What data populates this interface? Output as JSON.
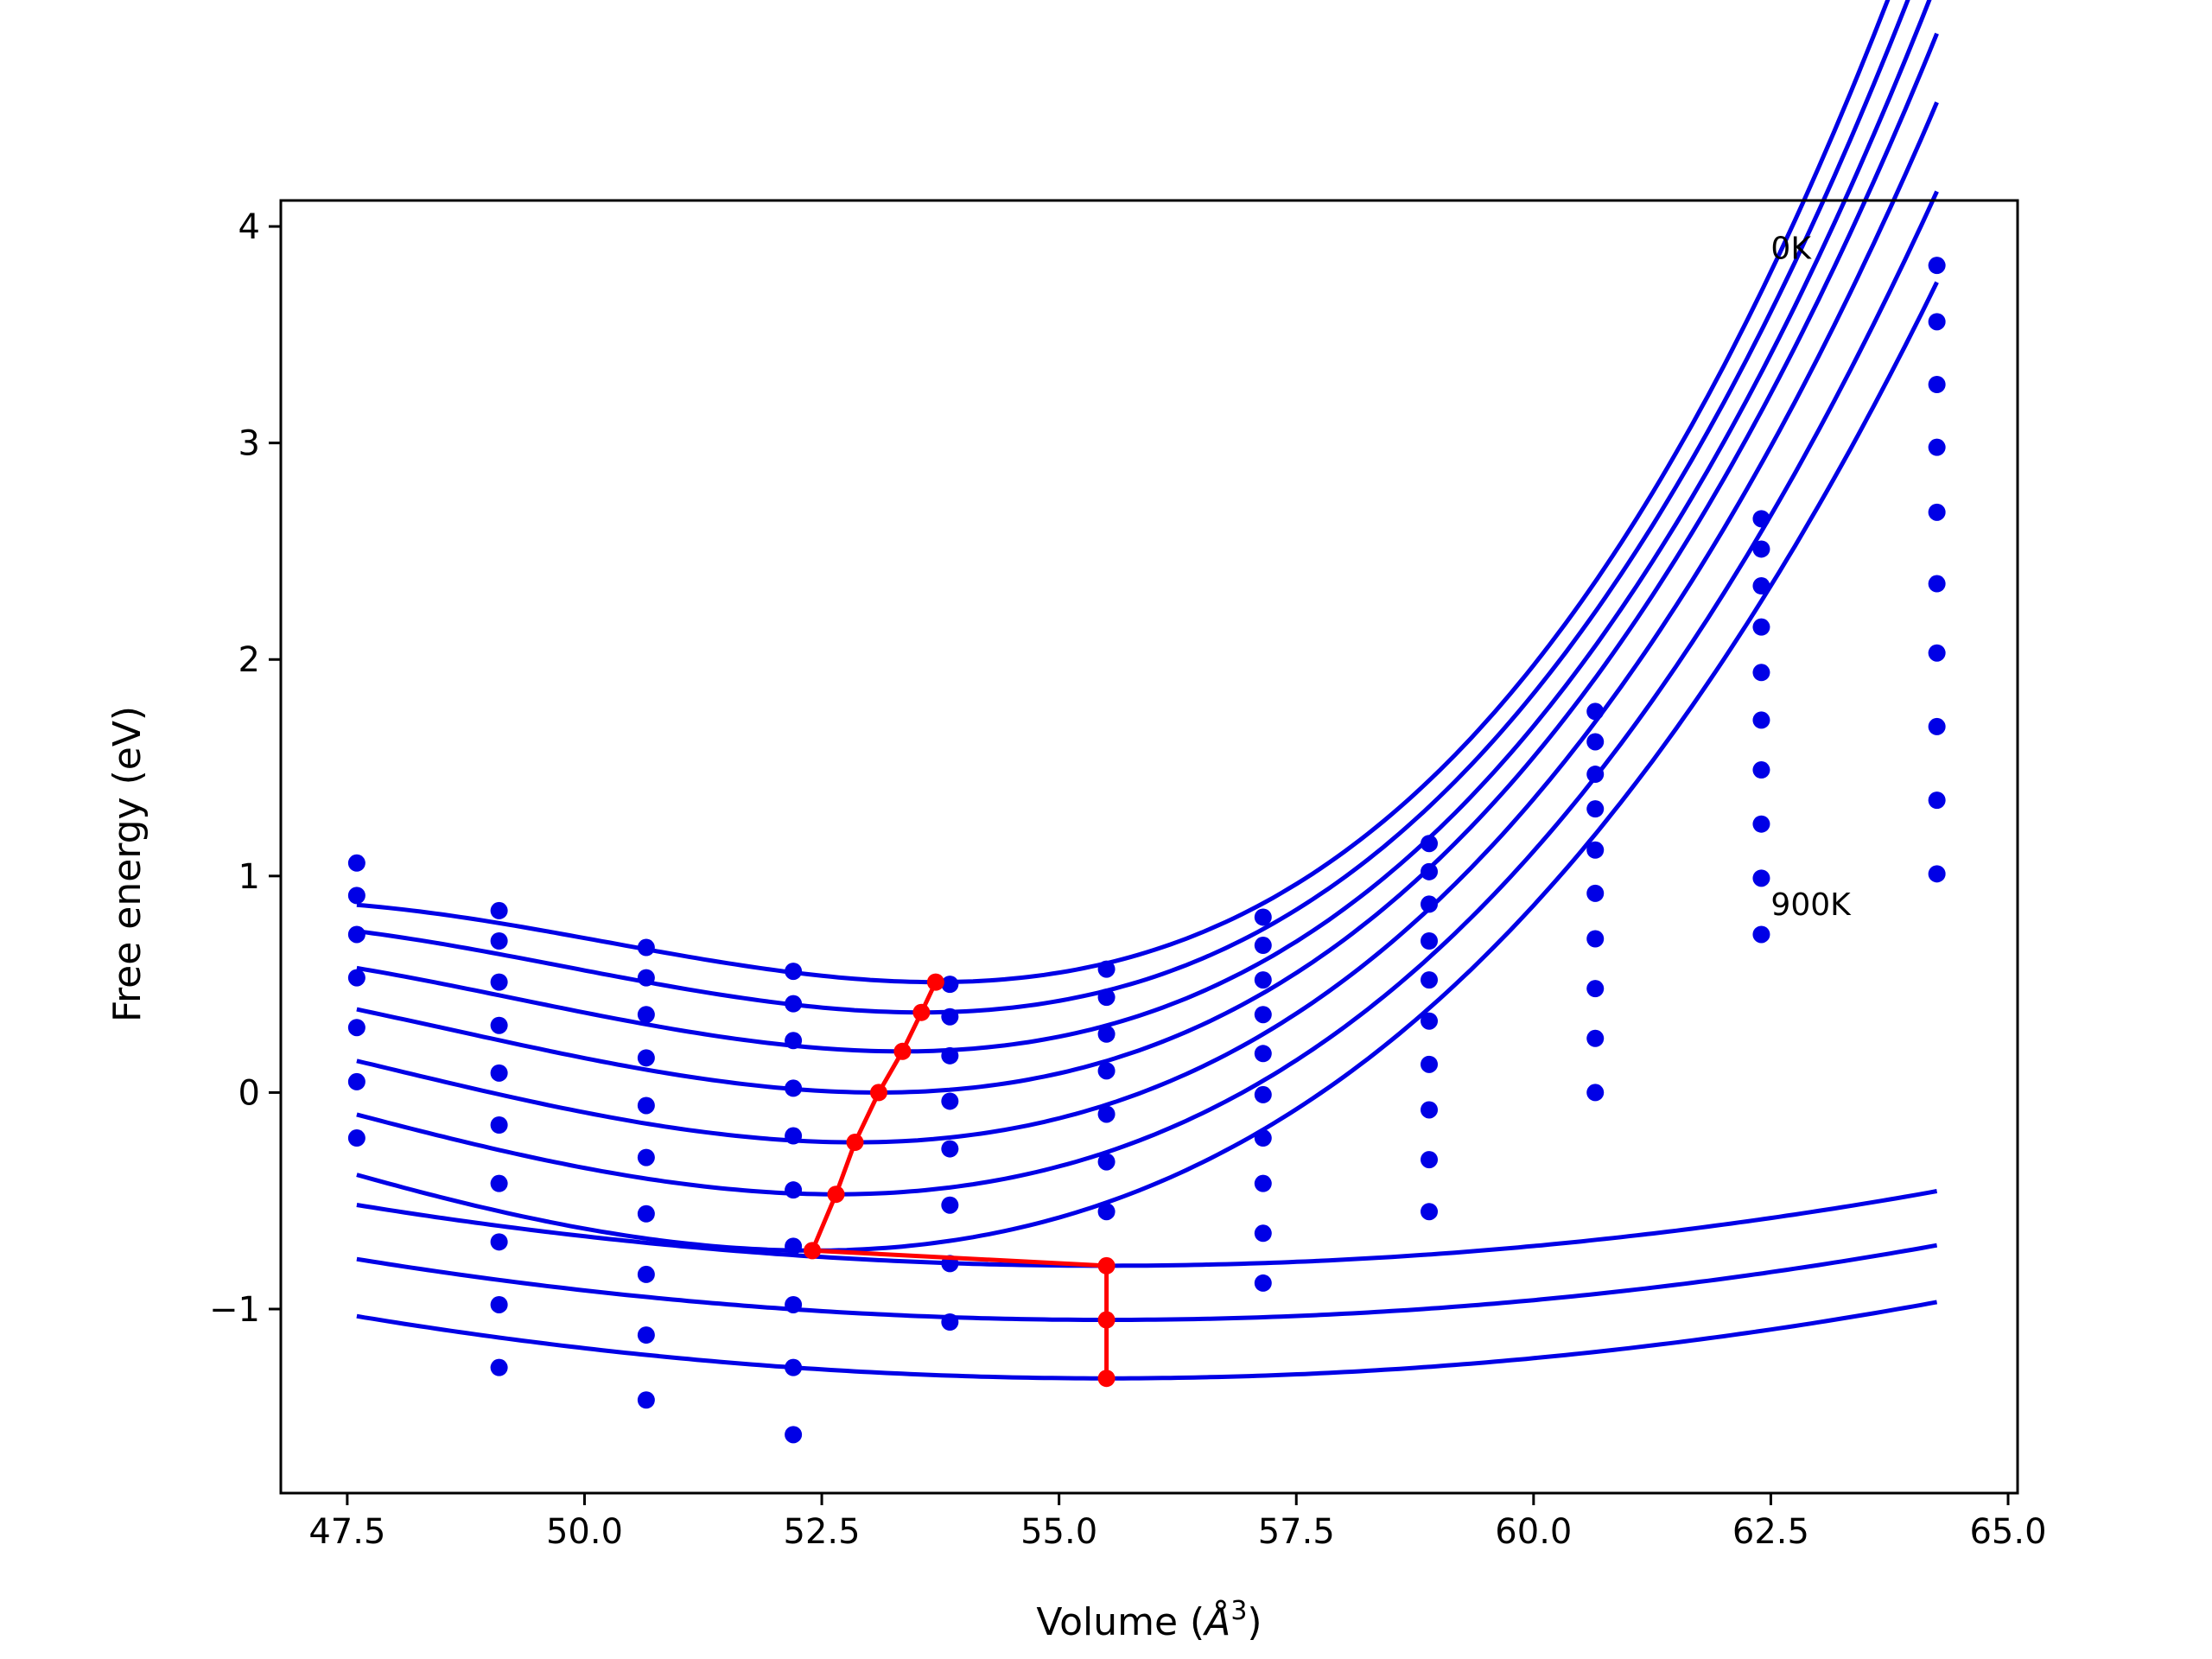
{
  "chart_data": {
    "type": "line",
    "xlabel": "Volume (",
    "xlabel_sym": "Å",
    "xlabel_sup": "3",
    "xlabel_end": ")",
    "ylabel": "Free energy (eV)",
    "xlim": [
      46.8,
      65.1
    ],
    "ylim": [
      -1.85,
      4.12
    ],
    "x_ticks": [
      47.5,
      50.0,
      52.5,
      55.0,
      57.5,
      60.0,
      62.5,
      65.0
    ],
    "x_tick_labels": [
      "47.5",
      "50.0",
      "52.5",
      "55.0",
      "57.5",
      "60.0",
      "62.5",
      "65.0"
    ],
    "y_ticks": [
      -1,
      0,
      1,
      2,
      3,
      4
    ],
    "y_tick_labels": [
      "−1",
      "0",
      "1",
      "2",
      "3",
      "4"
    ],
    "grid": false,
    "annotations": [
      {
        "text": "0K",
        "x": 62.5,
        "y": 3.85
      },
      {
        "text": "900K",
        "x": 62.5,
        "y": 0.82
      }
    ],
    "volumes": [
      47.6,
      49.1,
      50.65,
      52.2,
      53.85,
      55.5,
      57.15,
      58.9,
      60.65,
      62.4,
      64.25
    ],
    "series": [
      {
        "label": "0K",
        "points": [
          1.06,
          0.84,
          0.67,
          0.56,
          0.5,
          0.57,
          0.81,
          1.15,
          1.76,
          2.65,
          3.82
        ],
        "fit": {
          "v0": 53.7,
          "emin": 0.51,
          "a": 0.023,
          "b": 0.0022
        }
      },
      {
        "points": [
          0.91,
          0.7,
          0.53,
          0.41,
          0.35,
          0.44,
          0.68,
          1.02,
          1.62,
          2.51,
          3.56
        ],
        "fit": {
          "v0": 53.55,
          "emin": 0.37,
          "a": 0.0225,
          "b": 0.002
        }
      },
      {
        "points": [
          0.73,
          0.51,
          0.36,
          0.24,
          0.17,
          0.27,
          0.52,
          0.87,
          1.47,
          2.34,
          3.27
        ],
        "fit": {
          "v0": 53.35,
          "emin": 0.19,
          "a": 0.022,
          "b": 0.0018
        }
      },
      {
        "points": [
          0.53,
          0.31,
          0.16,
          0.02,
          -0.04,
          0.1,
          0.36,
          0.7,
          1.31,
          2.15,
          2.98
        ],
        "fit": {
          "v0": 53.1,
          "emin": 0.0,
          "a": 0.0215,
          "b": 0.0016
        }
      },
      {
        "points": [
          0.3,
          0.09,
          -0.06,
          -0.2,
          -0.26,
          -0.1,
          0.18,
          0.52,
          1.12,
          1.94,
          2.68
        ],
        "fit": {
          "v0": 52.85,
          "emin": -0.23,
          "a": 0.021,
          "b": 0.0014
        }
      },
      {
        "points": [
          0.05,
          -0.15,
          -0.3,
          -0.45,
          -0.52,
          -0.32,
          -0.01,
          0.33,
          0.92,
          1.72,
          2.35
        ],
        "fit": {
          "v0": 52.65,
          "emin": -0.47,
          "a": 0.0205,
          "b": 0.0012
        }
      },
      {
        "points": [
          -0.21,
          -0.42,
          -0.56,
          -0.71,
          -0.79,
          -0.55,
          -0.21,
          0.13,
          0.71,
          1.49,
          2.03
        ],
        "fit": {
          "v0": 52.4,
          "emin": -0.73,
          "a": 0.02,
          "b": 0.001
        }
      },
      {
        "points": [
          null,
          -0.69,
          -0.84,
          -0.98,
          -1.06,
          null,
          -0.42,
          -0.08,
          0.48,
          1.24,
          1.69
        ],
        "fit": {
          "v0": 55.5,
          "emin": -0.8,
          "a": 0.0045,
          "b": 0.0
        }
      },
      {
        "points": [
          null,
          -0.98,
          -1.12,
          -1.27,
          null,
          null,
          -0.65,
          -0.31,
          0.25,
          0.99,
          1.35
        ],
        "fit": {
          "v0": 55.5,
          "emin": -1.05,
          "a": 0.0045,
          "b": 0.0
        }
      },
      {
        "label": "900K",
        "points": [
          null,
          -1.27,
          -1.42,
          -1.58,
          null,
          null,
          -0.88,
          -0.55,
          0.0,
          0.73,
          1.01
        ],
        "fit": {
          "v0": 55.5,
          "emin": -1.32,
          "a": 0.0046,
          "b": 0.0
        }
      }
    ],
    "minimum_path": {
      "x": [
        53.7,
        53.55,
        53.35,
        53.1,
        52.85,
        52.65,
        52.4,
        55.5,
        55.5,
        55.5
      ],
      "y": [
        0.51,
        0.37,
        0.19,
        0.0,
        -0.23,
        -0.47,
        -0.73,
        -0.8,
        -1.05,
        -1.32
      ]
    },
    "colors": {
      "series": "#0000e6",
      "path": "#ff0000",
      "frame": "#000000"
    }
  }
}
